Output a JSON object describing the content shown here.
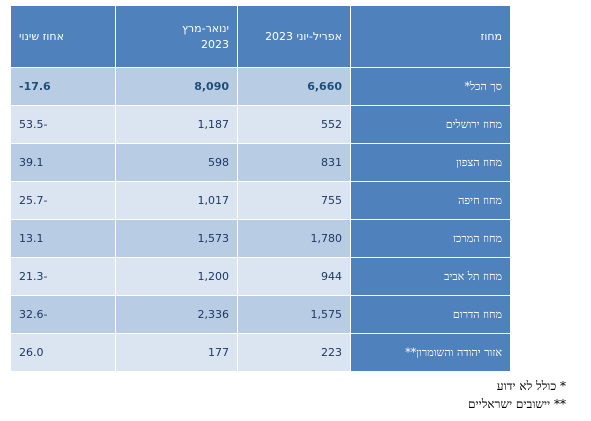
{
  "table": {
    "headers": {
      "change": "אחוז שינוי",
      "q1_line1": "ינואר-מרץ",
      "q1_line2": "2023",
      "q2": "אפריל-יוני 2023",
      "district": "מחוז"
    },
    "rows": [
      {
        "district": "סך הכל*",
        "q2": "6,660",
        "q1": "8,090",
        "change": "-17.6"
      },
      {
        "district": "מחוז ירושלים",
        "q2": "552",
        "q1": "1,187",
        "change": "53.5-"
      },
      {
        "district": "מחוז הצפון",
        "q2": "831",
        "q1": "598",
        "change": "39.1"
      },
      {
        "district": "מחוז חיפה",
        "q2": "755",
        "q1": "1,017",
        "change": "25.7-"
      },
      {
        "district": "מחוז המרכז",
        "q2": "1,780",
        "q1": "1,573",
        "change": "13.1"
      },
      {
        "district": "מחוז תל אביב",
        "q2": "944",
        "q1": "1,200",
        "change": "21.3-"
      },
      {
        "district": "מחוז הדרום",
        "q2": "1,575",
        "q1": "2,336",
        "change": "32.6-"
      },
      {
        "district": "אזור יהודה והשומרון**",
        "q2": "223",
        "q1": "177",
        "change": "26.0"
      }
    ]
  },
  "notes": {
    "note1": "* כולל לא ידוע",
    "note2": "** יישובים ישראליים"
  },
  "colors": {
    "header_bg": "#4f81bd",
    "row_dark": "#b8cce4",
    "row_light": "#dbe5f1"
  }
}
